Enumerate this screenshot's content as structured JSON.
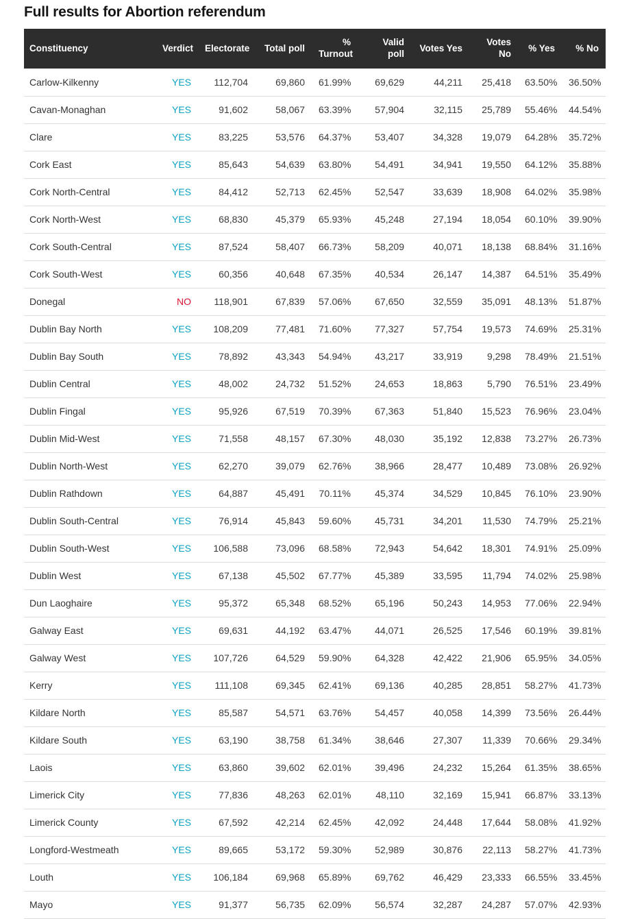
{
  "page": {
    "title": "Full results for Abortion referendum"
  },
  "colors": {
    "verdict_yes": "#0ba3c2",
    "verdict_no": "#dc1433",
    "header_bg": "#2d2d2d",
    "header_text": "#ffffff",
    "row_border": "#dcdcdc",
    "body_text": "#3a3a3a"
  },
  "chart_data": {
    "type": "table",
    "title": "Full results for Abortion referendum",
    "columns": [
      {
        "key": "constituency",
        "label": "Constituency"
      },
      {
        "key": "verdict",
        "label": "Verdict"
      },
      {
        "key": "electorate",
        "label": "Electorate"
      },
      {
        "key": "total_poll",
        "label": "Total poll"
      },
      {
        "key": "pct_turnout",
        "label": "% Turnout"
      },
      {
        "key": "valid_poll",
        "label": "Valid poll"
      },
      {
        "key": "votes_yes",
        "label": "Votes Yes"
      },
      {
        "key": "votes_no",
        "label": "Votes No"
      },
      {
        "key": "pct_yes",
        "label": "% Yes"
      },
      {
        "key": "pct_no",
        "label": "% No"
      }
    ],
    "rows": [
      [
        "Carlow-Kilkenny",
        "YES",
        "112,704",
        "69,860",
        "61.99%",
        "69,629",
        "44,211",
        "25,418",
        "63.50%",
        "36.50%"
      ],
      [
        "Cavan-Monaghan",
        "YES",
        "91,602",
        "58,067",
        "63.39%",
        "57,904",
        "32,115",
        "25,789",
        "55.46%",
        "44.54%"
      ],
      [
        "Clare",
        "YES",
        "83,225",
        "53,576",
        "64.37%",
        "53,407",
        "34,328",
        "19,079",
        "64.28%",
        "35.72%"
      ],
      [
        "Cork East",
        "YES",
        "85,643",
        "54,639",
        "63.80%",
        "54,491",
        "34,941",
        "19,550",
        "64.12%",
        "35.88%"
      ],
      [
        "Cork North-Central",
        "YES",
        "84,412",
        "52,713",
        "62.45%",
        "52,547",
        "33,639",
        "18,908",
        "64.02%",
        "35.98%"
      ],
      [
        "Cork North-West",
        "YES",
        "68,830",
        "45,379",
        "65.93%",
        "45,248",
        "27,194",
        "18,054",
        "60.10%",
        "39.90%"
      ],
      [
        "Cork South-Central",
        "YES",
        "87,524",
        "58,407",
        "66.73%",
        "58,209",
        "40,071",
        "18,138",
        "68.84%",
        "31.16%"
      ],
      [
        "Cork South-West",
        "YES",
        "60,356",
        "40,648",
        "67.35%",
        "40,534",
        "26,147",
        "14,387",
        "64.51%",
        "35.49%"
      ],
      [
        "Donegal",
        "NO",
        "118,901",
        "67,839",
        "57.06%",
        "67,650",
        "32,559",
        "35,091",
        "48.13%",
        "51.87%"
      ],
      [
        "Dublin Bay North",
        "YES",
        "108,209",
        "77,481",
        "71.60%",
        "77,327",
        "57,754",
        "19,573",
        "74.69%",
        "25.31%"
      ],
      [
        "Dublin Bay South",
        "YES",
        "78,892",
        "43,343",
        "54.94%",
        "43,217",
        "33,919",
        "9,298",
        "78.49%",
        "21.51%"
      ],
      [
        "Dublin Central",
        "YES",
        "48,002",
        "24,732",
        "51.52%",
        "24,653",
        "18,863",
        "5,790",
        "76.51%",
        "23.49%"
      ],
      [
        "Dublin Fingal",
        "YES",
        "95,926",
        "67,519",
        "70.39%",
        "67,363",
        "51,840",
        "15,523",
        "76.96%",
        "23.04%"
      ],
      [
        "Dublin Mid-West",
        "YES",
        "71,558",
        "48,157",
        "67.30%",
        "48,030",
        "35,192",
        "12,838",
        "73.27%",
        "26.73%"
      ],
      [
        "Dublin North-West",
        "YES",
        "62,270",
        "39,079",
        "62.76%",
        "38,966",
        "28,477",
        "10,489",
        "73.08%",
        "26.92%"
      ],
      [
        "Dublin Rathdown",
        "YES",
        "64,887",
        "45,491",
        "70.11%",
        "45,374",
        "34,529",
        "10,845",
        "76.10%",
        "23.90%"
      ],
      [
        "Dublin South-Central",
        "YES",
        "76,914",
        "45,843",
        "59.60%",
        "45,731",
        "34,201",
        "11,530",
        "74.79%",
        "25.21%"
      ],
      [
        "Dublin South-West",
        "YES",
        "106,588",
        "73,096",
        "68.58%",
        "72,943",
        "54,642",
        "18,301",
        "74.91%",
        "25.09%"
      ],
      [
        "Dublin West",
        "YES",
        "67,138",
        "45,502",
        "67.77%",
        "45,389",
        "33,595",
        "11,794",
        "74.02%",
        "25.98%"
      ],
      [
        "Dun Laoghaire",
        "YES",
        "95,372",
        "65,348",
        "68.52%",
        "65,196",
        "50,243",
        "14,953",
        "77.06%",
        "22.94%"
      ],
      [
        "Galway East",
        "YES",
        "69,631",
        "44,192",
        "63.47%",
        "44,071",
        "26,525",
        "17,546",
        "60.19%",
        "39.81%"
      ],
      [
        "Galway West",
        "YES",
        "107,726",
        "64,529",
        "59.90%",
        "64,328",
        "42,422",
        "21,906",
        "65.95%",
        "34.05%"
      ],
      [
        "Kerry",
        "YES",
        "111,108",
        "69,345",
        "62.41%",
        "69,136",
        "40,285",
        "28,851",
        "58.27%",
        "41.73%"
      ],
      [
        "Kildare North",
        "YES",
        "85,587",
        "54,571",
        "63.76%",
        "54,457",
        "40,058",
        "14,399",
        "73.56%",
        "26.44%"
      ],
      [
        "Kildare South",
        "YES",
        "63,190",
        "38,758",
        "61.34%",
        "38,646",
        "27,307",
        "11,339",
        "70.66%",
        "29.34%"
      ],
      [
        "Laois",
        "YES",
        "63,860",
        "39,602",
        "62.01%",
        "39,496",
        "24,232",
        "15,264",
        "61.35%",
        "38.65%"
      ],
      [
        "Limerick City",
        "YES",
        "77,836",
        "48,263",
        "62.01%",
        "48,110",
        "32,169",
        "15,941",
        "66.87%",
        "33.13%"
      ],
      [
        "Limerick County",
        "YES",
        "67,592",
        "42,214",
        "62.45%",
        "42,092",
        "24,448",
        "17,644",
        "58.08%",
        "41.92%"
      ],
      [
        "Longford-Westmeath",
        "YES",
        "89,665",
        "53,172",
        "59.30%",
        "52,989",
        "30,876",
        "22,113",
        "58.27%",
        "41.73%"
      ],
      [
        "Louth",
        "YES",
        "106,184",
        "69,968",
        "65.89%",
        "69,762",
        "46,429",
        "23,333",
        "66.55%",
        "33.45%"
      ],
      [
        "Mayo",
        "YES",
        "91,377",
        "56,735",
        "62.09%",
        "56,574",
        "32,287",
        "24,287",
        "57.07%",
        "42.93%"
      ]
    ]
  }
}
